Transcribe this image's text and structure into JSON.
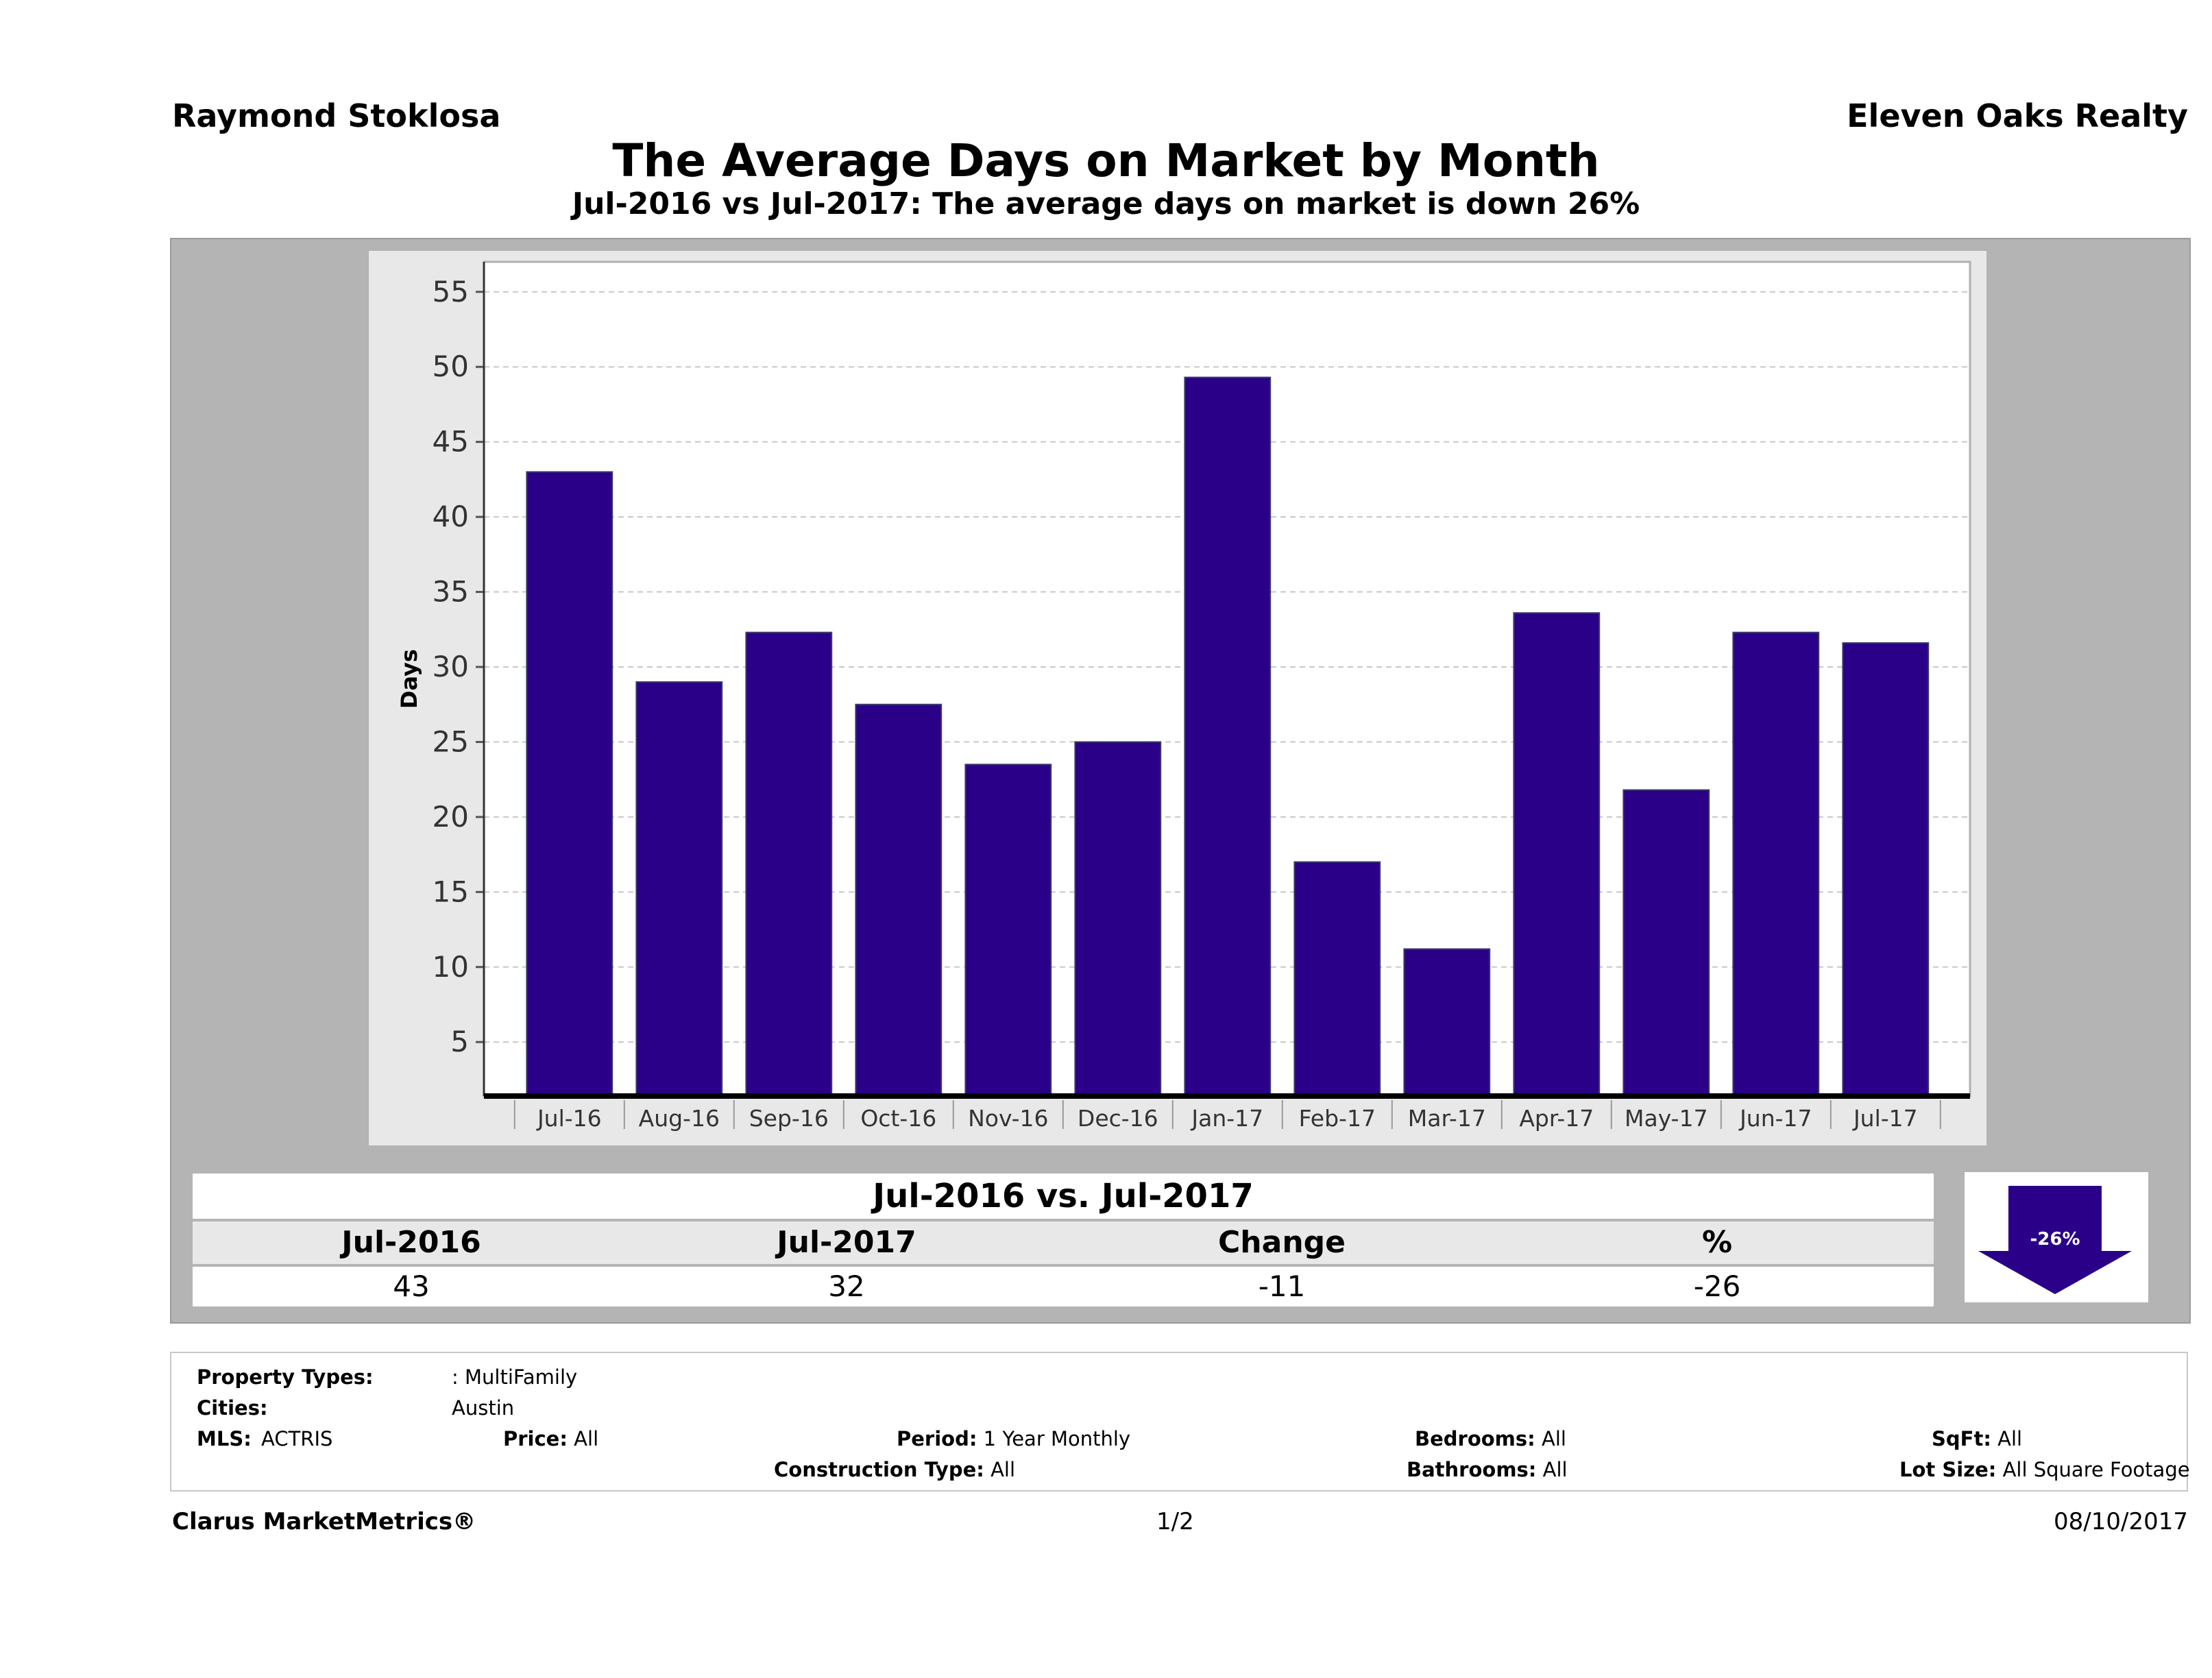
{
  "header": {
    "agent": "Raymond Stoklosa",
    "brokerage": "Eleven Oaks Realty",
    "title": "The Average Days on Market by Month",
    "subtitle": "Jul-2016 vs Jul-2017: The average days on market is down 26%"
  },
  "chart_data": {
    "type": "bar",
    "categories": [
      "Jul-16",
      "Aug-16",
      "Sep-16",
      "Oct-16",
      "Nov-16",
      "Dec-16",
      "Jan-17",
      "Feb-17",
      "Mar-17",
      "Apr-17",
      "May-17",
      "Jun-17",
      "Jul-17"
    ],
    "values": [
      43,
      29,
      32.3,
      27.5,
      23.5,
      25,
      49.3,
      17,
      11.2,
      33.6,
      21.8,
      32.3,
      31.6
    ],
    "title": "",
    "xlabel": "",
    "ylabel": "Days",
    "yticks": [
      5,
      10,
      15,
      20,
      25,
      30,
      35,
      40,
      45,
      50,
      55
    ],
    "ylim": [
      1.4,
      57
    ],
    "bar_color": "#2a0088",
    "grid": true
  },
  "comparison": {
    "title": "Jul-2016 vs. Jul-2017",
    "headers": [
      "Jul-2016",
      "Jul-2017",
      "Change",
      "%"
    ],
    "values": [
      "43",
      "32",
      "-11",
      "-26"
    ],
    "badge": "-26%",
    "badge_color": "#2a0088"
  },
  "filters": {
    "property_types_label": "Property Types:",
    "property_types_value": ": MultiFamily",
    "cities_label": "Cities:",
    "cities_value": "Austin",
    "mls_label": "MLS:",
    "mls_value": "ACTRIS",
    "price_label": "Price:",
    "price_value": "All",
    "period_label": "Period:",
    "period_value": "1 Year Monthly",
    "construction_label": "Construction Type:",
    "construction_value": "All",
    "bedrooms_label": "Bedrooms:",
    "bedrooms_value": "All",
    "bathrooms_label": "Bathrooms:",
    "bathrooms_value": "All",
    "sqft_label": "SqFt:",
    "sqft_value": "All",
    "lotsize_label": "Lot Size:",
    "lotsize_value": "All Square Footage"
  },
  "footer": {
    "left": "Clarus MarketMetrics®",
    "page": "1/2",
    "date": "08/10/2017"
  }
}
